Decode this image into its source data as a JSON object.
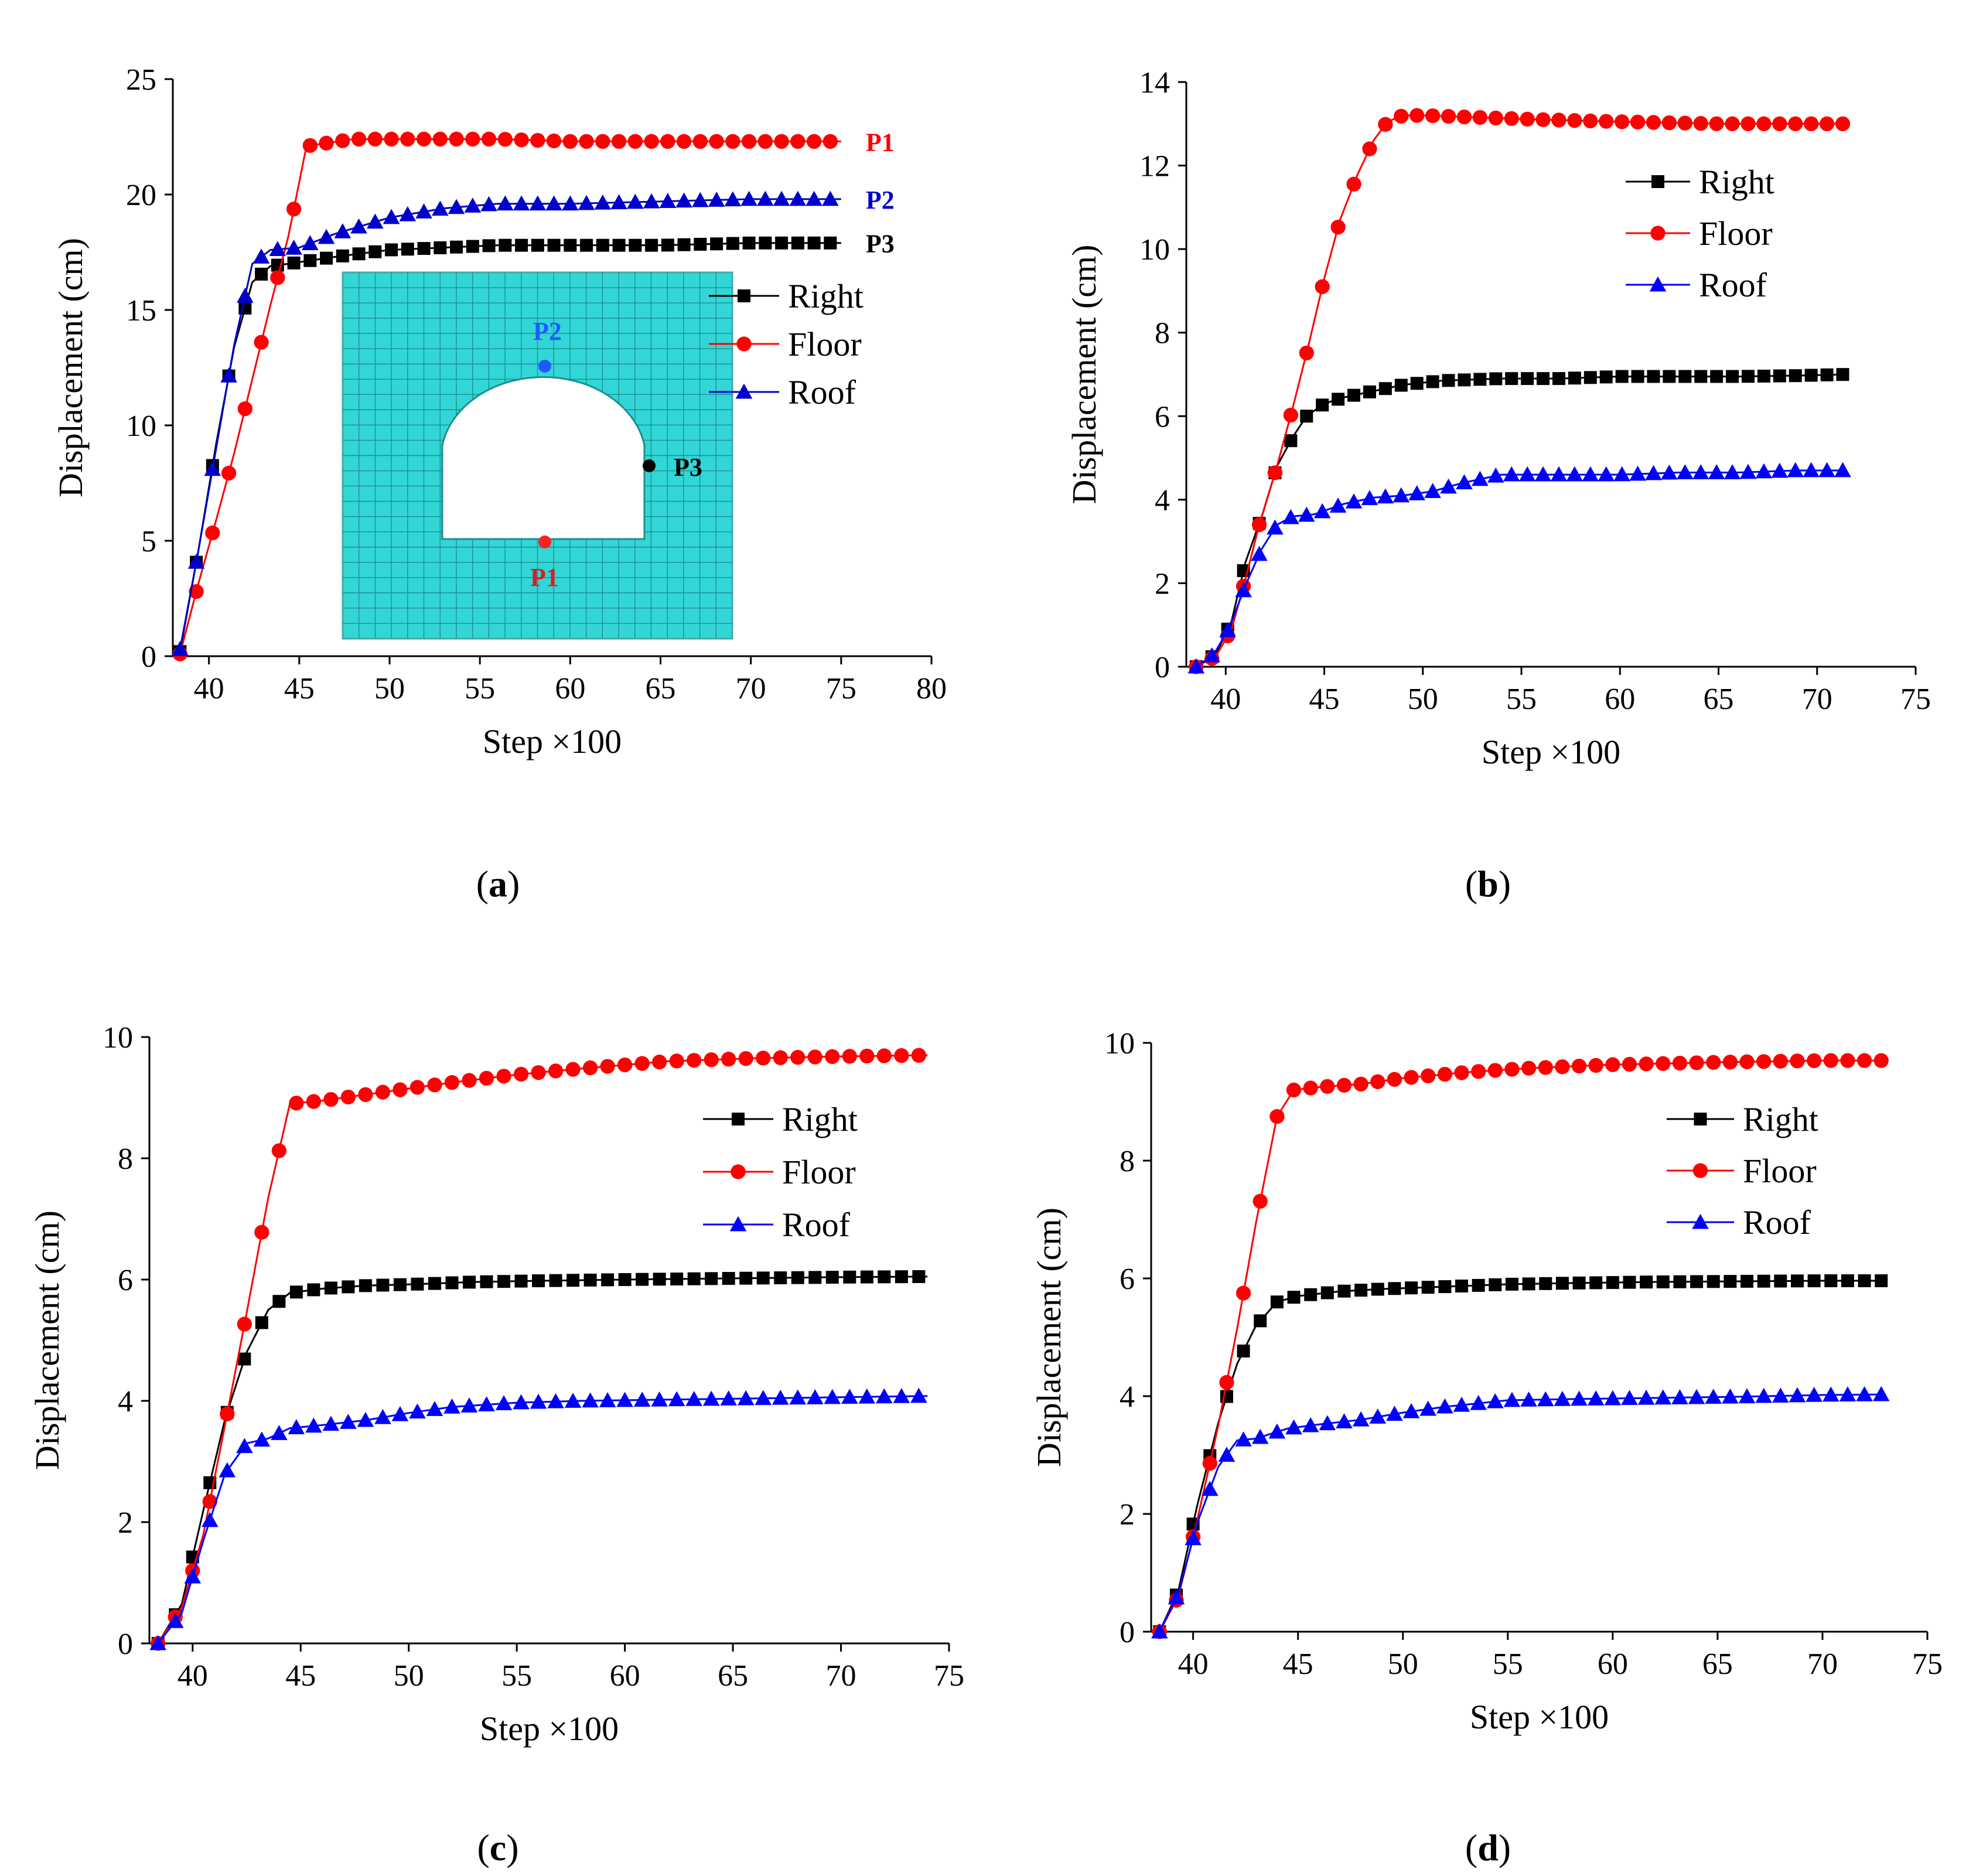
{
  "charts": [
    {
      "id": "a",
      "caption_open": "(",
      "caption_letter": "a",
      "caption_close": ")",
      "xlabel": "Step ×100",
      "ylabel": "Displacement (cm)",
      "xticks": [
        40,
        45,
        50,
        55,
        60,
        65,
        70,
        75,
        80
      ],
      "yticks": [
        0,
        5,
        10,
        15,
        20,
        25
      ],
      "legend": [
        "Right",
        "Floor",
        "Roof"
      ],
      "end_labels": {
        "Floor": "P1",
        "Roof": "P2",
        "Right": "P3"
      },
      "inset_labels": [
        "P2",
        "P3",
        "P1"
      ]
    },
    {
      "id": "b",
      "caption_open": "(",
      "caption_letter": "b",
      "caption_close": ")",
      "xlabel": "Step ×100",
      "ylabel": "Displacement (cm)",
      "xticks": [
        40,
        45,
        50,
        55,
        60,
        65,
        70,
        75
      ],
      "yticks": [
        0,
        2,
        4,
        6,
        8,
        10,
        12,
        14
      ],
      "legend": [
        "Right",
        "Floor",
        "Roof"
      ]
    },
    {
      "id": "c",
      "caption_open": "(",
      "caption_letter": "c",
      "caption_close": ")",
      "xlabel": "Step ×100",
      "ylabel": "Displacement (cm)",
      "xticks": [
        40,
        45,
        50,
        55,
        60,
        65,
        70,
        75
      ],
      "yticks": [
        0,
        2,
        4,
        6,
        8,
        10
      ],
      "legend": [
        "Right",
        "Floor",
        "Roof"
      ]
    },
    {
      "id": "d",
      "caption_open": "(",
      "caption_letter": "d",
      "caption_close": ")",
      "xlabel": "Step ×100",
      "ylabel": "Displacement (cm)",
      "xticks": [
        40,
        45,
        50,
        55,
        60,
        65,
        70,
        75
      ],
      "yticks": [
        0,
        2,
        4,
        6,
        8,
        10
      ],
      "legend": [
        "Right",
        "Floor",
        "Roof"
      ]
    }
  ],
  "chart_data": [
    {
      "type": "line",
      "xlim": [
        38,
        80
      ],
      "ylim": [
        0,
        25
      ],
      "grid": false,
      "legend_position": "right",
      "series": [
        {
          "name": "Right",
          "color": "#000000",
          "marker": "square",
          "x": [
            38.4,
            39.4,
            40.4,
            41.4,
            42.4,
            43.4,
            44.4,
            47,
            50,
            53,
            56,
            60,
            65,
            70,
            75
          ],
          "y": [
            0.2,
            4.5,
            9.2,
            13.4,
            16.2,
            16.9,
            17.0,
            17.3,
            17.6,
            17.7,
            17.8,
            17.8,
            17.8,
            17.9,
            17.9
          ]
        },
        {
          "name": "Floor",
          "color": "#ff0000",
          "marker": "circle",
          "x": [
            38.4,
            39.4,
            40.4,
            41.4,
            42.4,
            43.4,
            44.4,
            45.4,
            48,
            52,
            56,
            60,
            65,
            70,
            75
          ],
          "y": [
            0.1,
            3.1,
            5.9,
            8.8,
            12.0,
            15.2,
            18.2,
            22.1,
            22.4,
            22.4,
            22.4,
            22.3,
            22.3,
            22.3,
            22.3
          ]
        },
        {
          "name": "Roof",
          "color": "#0000cc",
          "marker": "triangle",
          "x": [
            38.4,
            39.4,
            40.4,
            41.4,
            42.4,
            43.4,
            45,
            47,
            50,
            53,
            56,
            60,
            65,
            70,
            75
          ],
          "y": [
            0.3,
            4.5,
            9.0,
            13.5,
            17.0,
            17.6,
            17.7,
            18.3,
            19.0,
            19.4,
            19.6,
            19.6,
            19.7,
            19.8,
            19.8
          ]
        }
      ]
    },
    {
      "type": "line",
      "xlim": [
        38,
        75
      ],
      "ylim": [
        0,
        14
      ],
      "grid": false,
      "legend_position": "top-right",
      "series": [
        {
          "name": "Right",
          "color": "#000000",
          "marker": "square",
          "x": [
            38.5,
            39.5,
            40.3,
            41.0,
            41.9,
            42.6,
            43.4,
            44.1,
            45.0,
            46.0,
            47.5,
            49,
            51,
            54,
            57,
            60,
            63,
            66,
            69,
            71.5
          ],
          "y": [
            0.0,
            0.3,
            1.1,
            2.5,
            3.7,
            4.8,
            5.5,
            6.0,
            6.3,
            6.45,
            6.6,
            6.75,
            6.85,
            6.9,
            6.9,
            6.95,
            6.95,
            6.95,
            6.97,
            7.0
          ]
        },
        {
          "name": "Floor",
          "color": "#ff0000",
          "marker": "circle",
          "x": [
            38.5,
            39.5,
            40.3,
            41.0,
            41.7,
            42.6,
            43.4,
            44.2,
            45.0,
            45.8,
            46.7,
            47.5,
            48.2,
            49,
            50,
            53,
            56,
            60,
            65,
            71.5
          ],
          "y": [
            0.0,
            0.25,
            0.9,
            2.1,
            3.4,
            4.8,
            6.2,
            7.7,
            9.3,
            10.7,
            11.8,
            12.6,
            13.05,
            13.2,
            13.2,
            13.15,
            13.1,
            13.05,
            13.0,
            13.0
          ]
        },
        {
          "name": "Roof",
          "color": "#0000ff",
          "marker": "triangle",
          "x": [
            38.5,
            39.4,
            40.2,
            41.0,
            41.8,
            42.6,
            43.4,
            44.5,
            46,
            47.5,
            49,
            50.5,
            52,
            54,
            57,
            60,
            63,
            66,
            69,
            71.5
          ],
          "y": [
            0.0,
            0.3,
            0.95,
            1.95,
            2.8,
            3.4,
            3.6,
            3.65,
            3.9,
            4.05,
            4.1,
            4.2,
            4.4,
            4.6,
            4.6,
            4.6,
            4.65,
            4.65,
            4.7,
            4.7
          ]
        }
      ]
    },
    {
      "type": "line",
      "xlim": [
        38,
        75
      ],
      "ylim": [
        0,
        10
      ],
      "grid": false,
      "legend_position": "top-right",
      "series": [
        {
          "name": "Right",
          "color": "#000000",
          "marker": "square",
          "x": [
            38.4,
            39.5,
            40.5,
            41.5,
            42.5,
            43.5,
            44.5,
            46,
            48,
            50,
            53,
            56,
            60,
            65,
            70,
            74
          ],
          "y": [
            0.0,
            0.65,
            2.2,
            3.7,
            4.8,
            5.5,
            5.78,
            5.85,
            5.9,
            5.92,
            5.96,
            5.98,
            6.0,
            6.02,
            6.04,
            6.05
          ]
        },
        {
          "name": "Floor",
          "color": "#ff0000",
          "marker": "circle",
          "x": [
            38.4,
            39.5,
            40.5,
            41.5,
            42.5,
            43.5,
            44.5,
            46,
            48,
            50,
            52,
            55,
            58,
            62,
            66,
            70,
            74
          ],
          "y": [
            0.0,
            0.6,
            1.8,
            3.6,
            5.45,
            7.35,
            8.9,
            8.95,
            9.05,
            9.15,
            9.25,
            9.38,
            9.48,
            9.6,
            9.65,
            9.68,
            9.7
          ]
        },
        {
          "name": "Roof",
          "color": "#0000ff",
          "marker": "triangle",
          "x": [
            38.4,
            39.5,
            40.5,
            41.5,
            42.5,
            43.5,
            44.5,
            46,
            48,
            50,
            52,
            55,
            58,
            62,
            66,
            70,
            74
          ],
          "y": [
            0.0,
            0.5,
            1.7,
            2.8,
            3.3,
            3.38,
            3.55,
            3.6,
            3.68,
            3.8,
            3.9,
            3.97,
            4.0,
            4.02,
            4.04,
            4.06,
            4.08
          ]
        }
      ]
    },
    {
      "type": "line",
      "xlim": [
        38,
        75
      ],
      "ylim": [
        0,
        10
      ],
      "grid": false,
      "legend_position": "top-right",
      "series": [
        {
          "name": "Right",
          "color": "#000000",
          "marker": "square",
          "x": [
            38.4,
            39.3,
            40.2,
            41.2,
            42.1,
            43.0,
            44.0,
            45,
            47,
            49,
            52,
            55,
            58,
            62,
            66,
            70,
            73
          ],
          "y": [
            0.0,
            0.7,
            2.15,
            3.55,
            4.55,
            5.2,
            5.6,
            5.7,
            5.78,
            5.82,
            5.86,
            5.9,
            5.92,
            5.94,
            5.95,
            5.96,
            5.96
          ]
        },
        {
          "name": "Floor",
          "color": "#ff0000",
          "marker": "circle",
          "x": [
            38.4,
            39.3,
            40.2,
            41.2,
            42.1,
            43.0,
            44.0,
            44.8,
            46,
            48,
            50,
            53,
            56,
            60,
            65,
            70,
            73
          ],
          "y": [
            0.0,
            0.6,
            1.9,
            3.5,
            5.15,
            6.95,
            8.75,
            9.2,
            9.25,
            9.3,
            9.4,
            9.5,
            9.57,
            9.63,
            9.67,
            9.7,
            9.7
          ]
        },
        {
          "name": "Roof",
          "color": "#0000ff",
          "marker": "triangle",
          "x": [
            38.4,
            39.3,
            40.2,
            41.2,
            42.1,
            43.0,
            44.5,
            46,
            48,
            50,
            52,
            55,
            58,
            62,
            66,
            70,
            73
          ],
          "y": [
            0.0,
            0.65,
            1.85,
            2.8,
            3.25,
            3.28,
            3.45,
            3.52,
            3.6,
            3.72,
            3.82,
            3.93,
            3.95,
            3.97,
            3.99,
            4.02,
            4.03
          ]
        }
      ]
    }
  ]
}
